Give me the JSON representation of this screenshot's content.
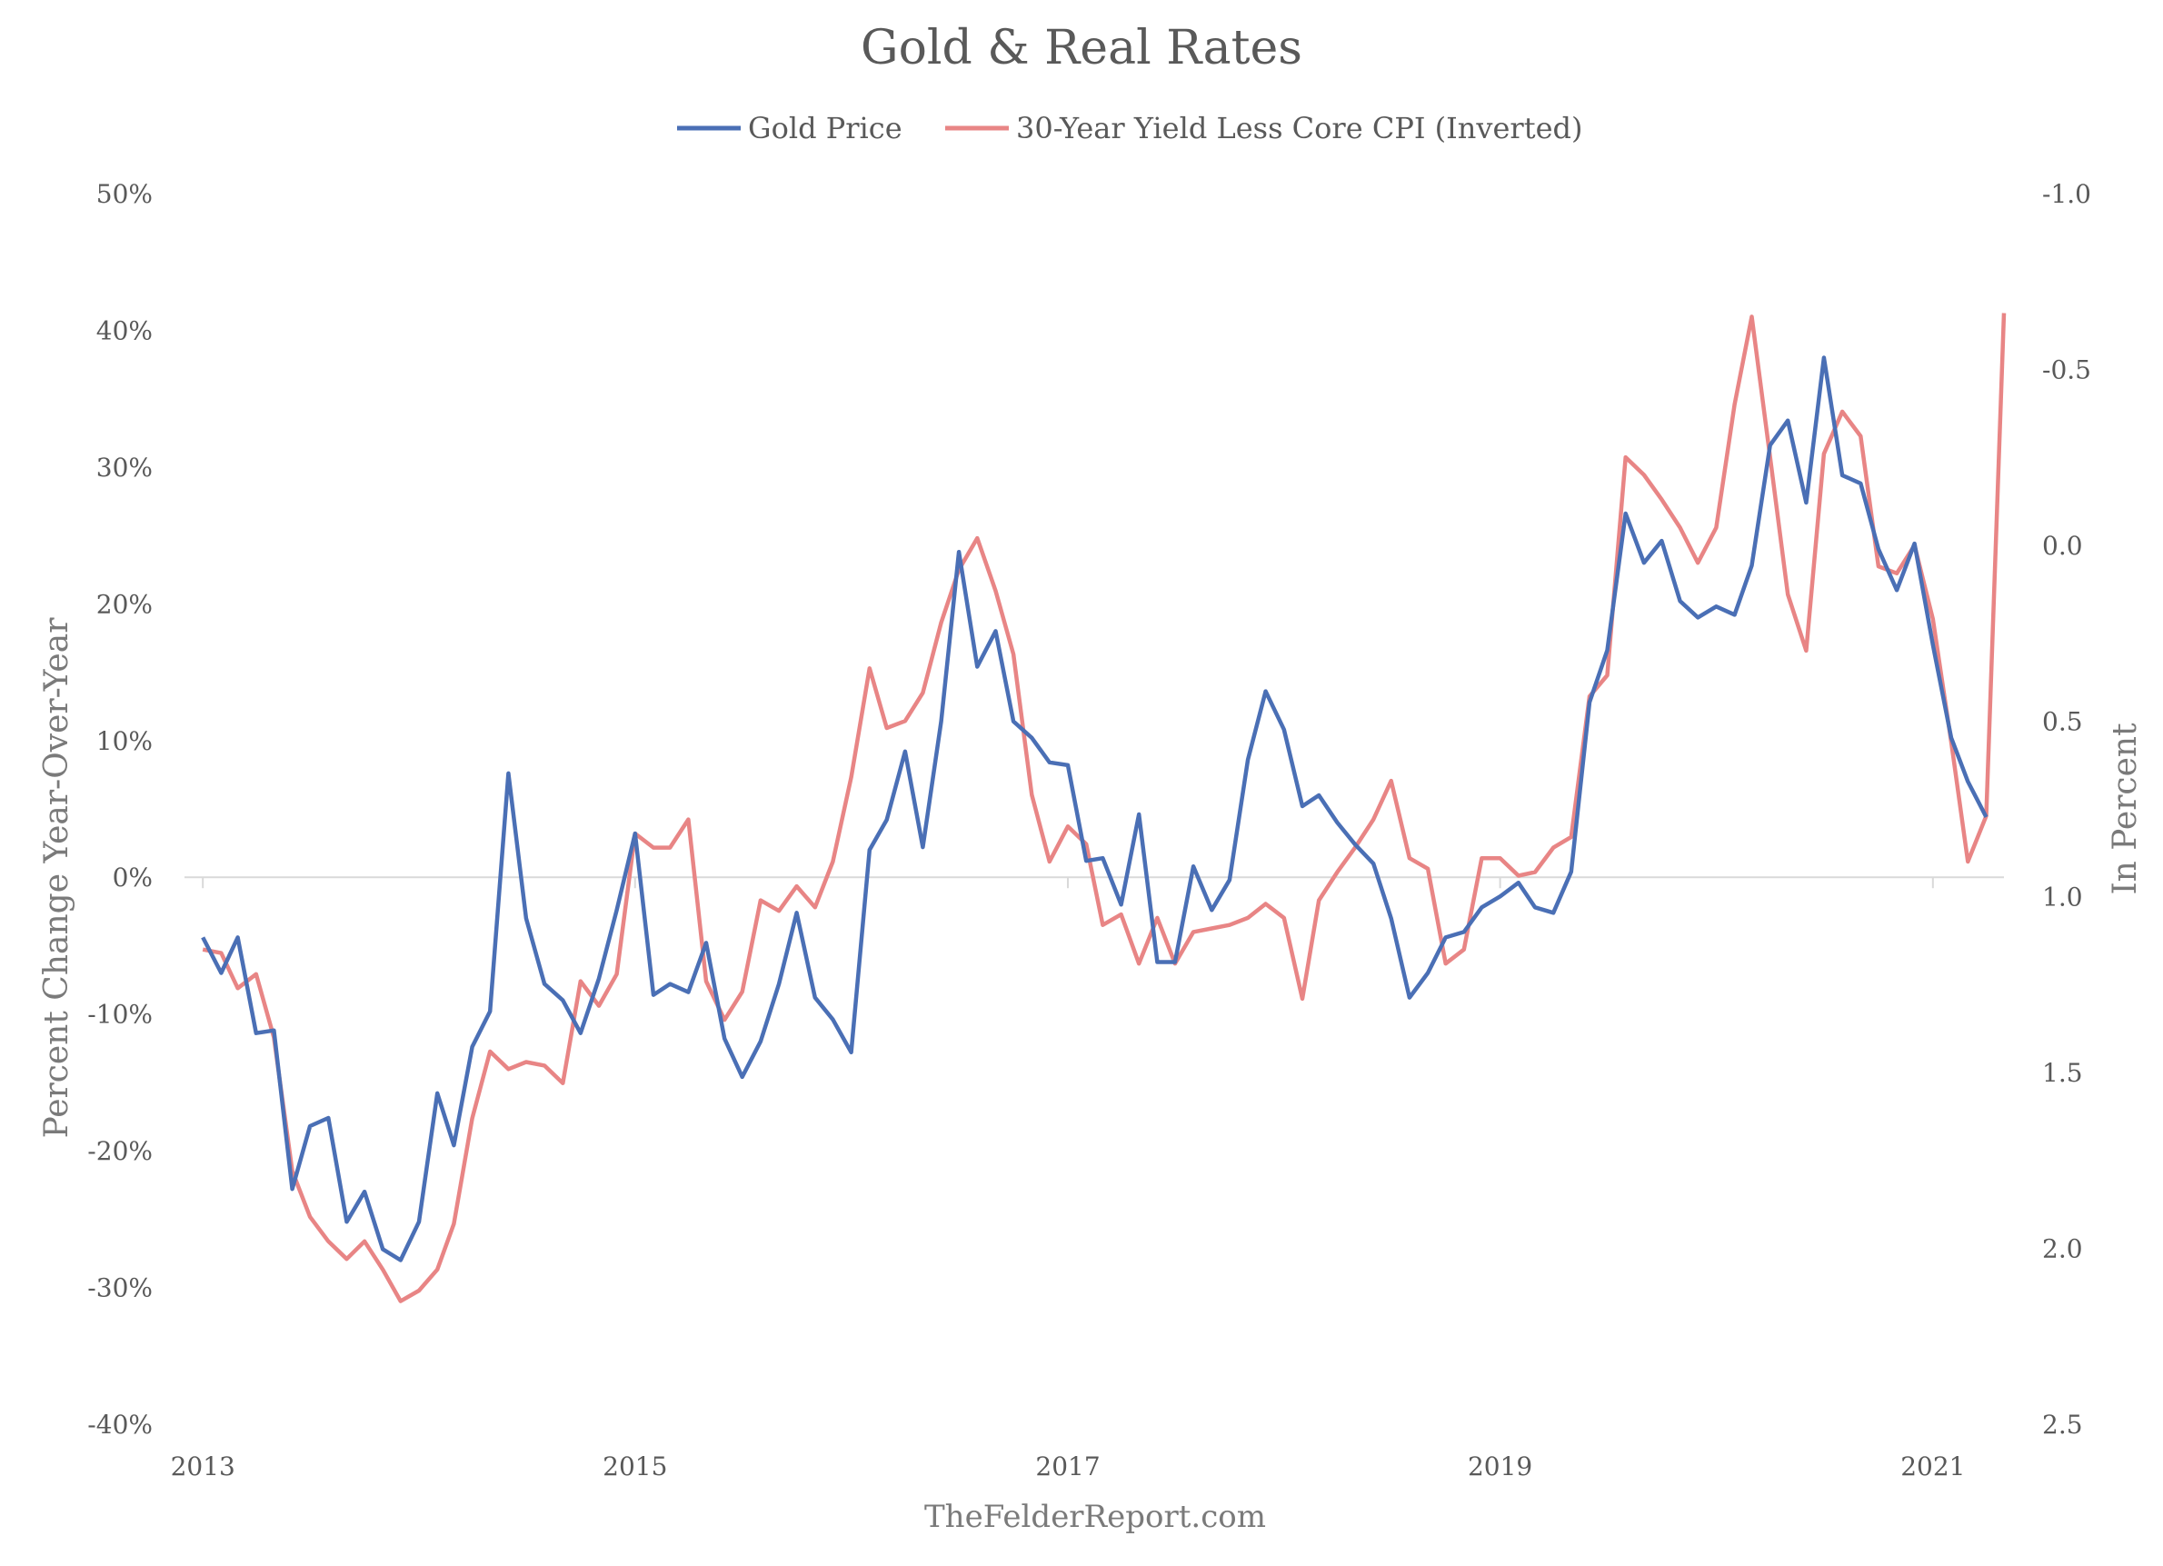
{
  "chart_data": {
    "type": "line",
    "title": "Gold & Real Rates",
    "source": "TheFelderReport.com",
    "legend_position": "top-center",
    "grid": false,
    "x_axis": {
      "type": "date",
      "range": [
        "2012-12-01",
        "2021-05-01"
      ],
      "ticks": [
        {
          "label": "2013",
          "value": "2013-01-01"
        },
        {
          "label": "2015",
          "value": "2015-01-01"
        },
        {
          "label": "2017",
          "value": "2017-01-01"
        },
        {
          "label": "2019",
          "value": "2019-01-01"
        },
        {
          "label": "2021",
          "value": "2021-01-01"
        }
      ]
    },
    "y_left": {
      "label": "Percent Change Year-Over-Year",
      "range": [
        -40,
        50
      ],
      "ticks": [
        {
          "label": "50%",
          "value": 50
        },
        {
          "label": "40%",
          "value": 40
        },
        {
          "label": "30%",
          "value": 30
        },
        {
          "label": "20%",
          "value": 20
        },
        {
          "label": "10%",
          "value": 10
        },
        {
          "label": "0%",
          "value": 0
        },
        {
          "label": "-10%",
          "value": -10
        },
        {
          "label": "-20%",
          "value": -20
        },
        {
          "label": "-30%",
          "value": -30
        },
        {
          "label": "-40%",
          "value": -40
        }
      ]
    },
    "y_right": {
      "label": "In Percent",
      "inverted": true,
      "range": [
        -1.0,
        2.5
      ],
      "ticks": [
        {
          "label": "-1.0",
          "value": -1.0
        },
        {
          "label": "-0.5",
          "value": -0.5
        },
        {
          "label": "0.0",
          "value": 0.0
        },
        {
          "label": "0.5",
          "value": 0.5
        },
        {
          "label": "1.0",
          "value": 1.0
        },
        {
          "label": "1.5",
          "value": 1.5
        },
        {
          "label": "2.0",
          "value": 2.0
        },
        {
          "label": "2.5",
          "value": 2.5
        }
      ]
    },
    "series": [
      {
        "name": "Gold Price",
        "axis": "left",
        "color": "#4a6fb5",
        "start": "2013-01-01",
        "frequency": "monthly",
        "values": [
          -4.4,
          -7.0,
          -4.4,
          -11.4,
          -11.2,
          -22.8,
          -18.2,
          -17.6,
          -25.2,
          -23.0,
          -27.2,
          -28.0,
          -25.2,
          -15.8,
          -19.6,
          -12.4,
          -9.8,
          7.6,
          -3.0,
          -7.8,
          -9.0,
          -11.4,
          -7.4,
          -2.4,
          3.2,
          -8.6,
          -7.8,
          -8.4,
          -4.8,
          -11.8,
          -14.6,
          -12.0,
          -7.8,
          -2.6,
          -8.8,
          -10.4,
          -12.8,
          2.0,
          4.2,
          9.2,
          2.2,
          11.4,
          23.8,
          15.4,
          18.0,
          11.4,
          10.2,
          8.4,
          8.2,
          1.2,
          1.4,
          -2.0,
          4.6,
          -6.2,
          -6.2,
          0.8,
          -2.4,
          -0.2,
          8.6,
          13.6,
          10.8,
          5.2,
          6.0,
          4.0,
          2.4,
          1.0,
          -3.0,
          -8.8,
          -7.0,
          -4.4,
          -4.0,
          -2.2,
          -1.4,
          -0.4,
          -2.2,
          -2.6,
          0.4,
          12.8,
          16.6,
          26.6,
          23.0,
          24.6,
          20.2,
          19.0,
          19.8,
          19.2,
          22.8,
          31.6,
          33.4,
          27.4,
          38.0,
          29.4,
          28.8,
          24.0,
          21.0,
          24.4,
          17.0,
          10.2,
          7.0,
          4.4
        ]
      },
      {
        "name": "30-Year Yield Less Core CPI (Inverted)",
        "axis": "right",
        "color": "#e88585",
        "start": "2013-01-01",
        "frequency": "monthly",
        "values": [
          1.15,
          1.16,
          1.26,
          1.22,
          1.4,
          1.78,
          1.91,
          1.98,
          2.03,
          1.98,
          2.06,
          2.15,
          2.12,
          2.06,
          1.93,
          1.63,
          1.44,
          1.49,
          1.47,
          1.48,
          1.53,
          1.24,
          1.31,
          1.22,
          0.82,
          0.86,
          0.86,
          0.78,
          1.24,
          1.35,
          1.27,
          1.01,
          1.04,
          0.97,
          1.03,
          0.9,
          0.66,
          0.35,
          0.52,
          0.5,
          0.42,
          0.22,
          0.07,
          -0.02,
          0.13,
          0.31,
          0.71,
          0.9,
          0.8,
          0.85,
          1.08,
          1.05,
          1.19,
          1.06,
          1.19,
          1.1,
          1.09,
          1.08,
          1.06,
          1.02,
          1.06,
          1.29,
          1.01,
          0.93,
          0.86,
          0.78,
          0.67,
          0.89,
          0.92,
          1.19,
          1.15,
          0.89,
          0.89,
          0.94,
          0.93,
          0.86,
          0.83,
          0.43,
          0.37,
          -0.25,
          -0.2,
          -0.13,
          -0.05,
          0.05,
          -0.05,
          -0.4,
          -0.65,
          -0.25,
          0.14,
          0.3,
          -0.26,
          -0.38,
          -0.31,
          0.06,
          0.08,
          0.0,
          0.21,
          0.56,
          0.9,
          0.77,
          -0.66
        ]
      }
    ]
  }
}
